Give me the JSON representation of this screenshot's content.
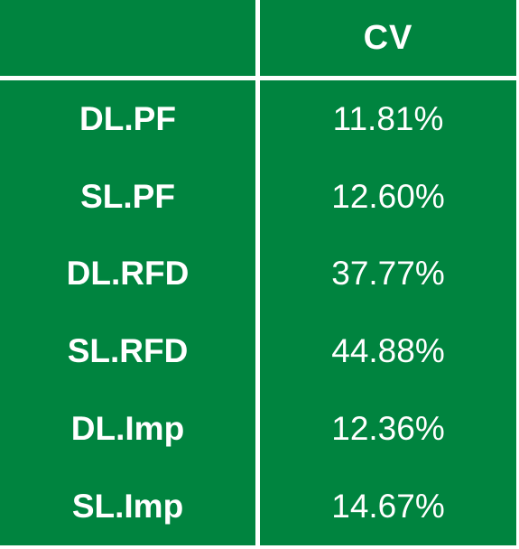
{
  "table": {
    "header": {
      "left": "",
      "right": "CV"
    },
    "rows": [
      {
        "label": "DL.PF",
        "value": "11.81%"
      },
      {
        "label": "SL.PF",
        "value": "12.60%"
      },
      {
        "label": "DL.RFD",
        "value": "37.77%"
      },
      {
        "label": "SL.RFD",
        "value": "44.88%"
      },
      {
        "label": "DL.Imp",
        "value": "12.36%"
      },
      {
        "label": "SL.Imp",
        "value": "14.67%"
      }
    ]
  },
  "colors": {
    "background": "#00843f",
    "text": "#ffffff",
    "divider": "#ffffff"
  }
}
